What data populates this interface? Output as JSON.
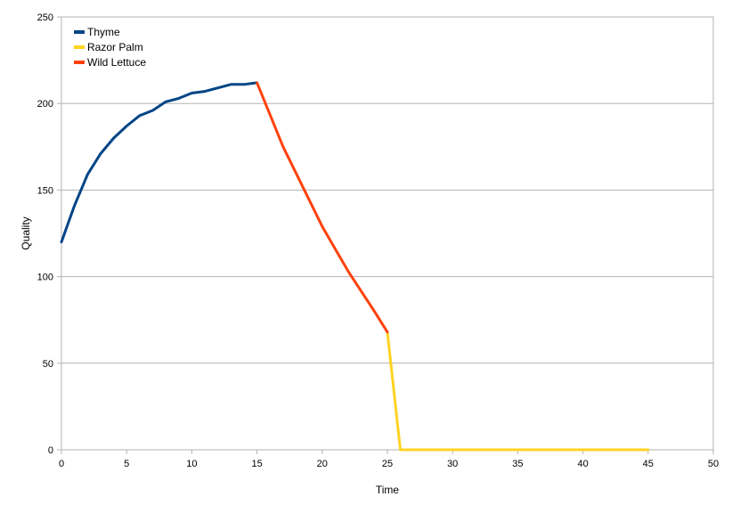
{
  "chart_data": {
    "type": "line",
    "title": "",
    "xlabel": "Time",
    "ylabel": "Quality",
    "xlim": [
      0,
      50
    ],
    "ylim": [
      0,
      250
    ],
    "x_ticks": [
      0,
      5,
      10,
      15,
      20,
      25,
      30,
      35,
      40,
      45,
      50
    ],
    "y_ticks": [
      0,
      50,
      100,
      150,
      200,
      250
    ],
    "grid": "horizontal",
    "legend_position": "top-left",
    "series": [
      {
        "name": "Thyme",
        "color": "#004586",
        "points": [
          [
            0,
            120
          ],
          [
            1,
            141
          ],
          [
            2,
            159
          ],
          [
            3,
            171
          ],
          [
            4,
            180
          ],
          [
            5,
            187
          ],
          [
            6,
            193
          ],
          [
            7,
            196
          ],
          [
            8,
            201
          ],
          [
            9,
            203
          ],
          [
            10,
            206
          ],
          [
            11,
            207
          ],
          [
            12,
            209
          ],
          [
            13,
            211
          ],
          [
            14,
            211
          ],
          [
            15,
            212
          ]
        ]
      },
      {
        "name": "Razor Palm",
        "color": "#ffd320",
        "points": [
          [
            25,
            68
          ],
          [
            26,
            0
          ],
          [
            30,
            0
          ],
          [
            35,
            0
          ],
          [
            40,
            0
          ],
          [
            45,
            0
          ]
        ]
      },
      {
        "name": "Wild Lettuce",
        "color": "#ff420e",
        "points": [
          [
            15,
            212
          ],
          [
            17,
            175
          ],
          [
            20,
            129
          ],
          [
            22,
            103
          ],
          [
            24,
            80
          ],
          [
            25,
            68
          ]
        ]
      }
    ]
  }
}
